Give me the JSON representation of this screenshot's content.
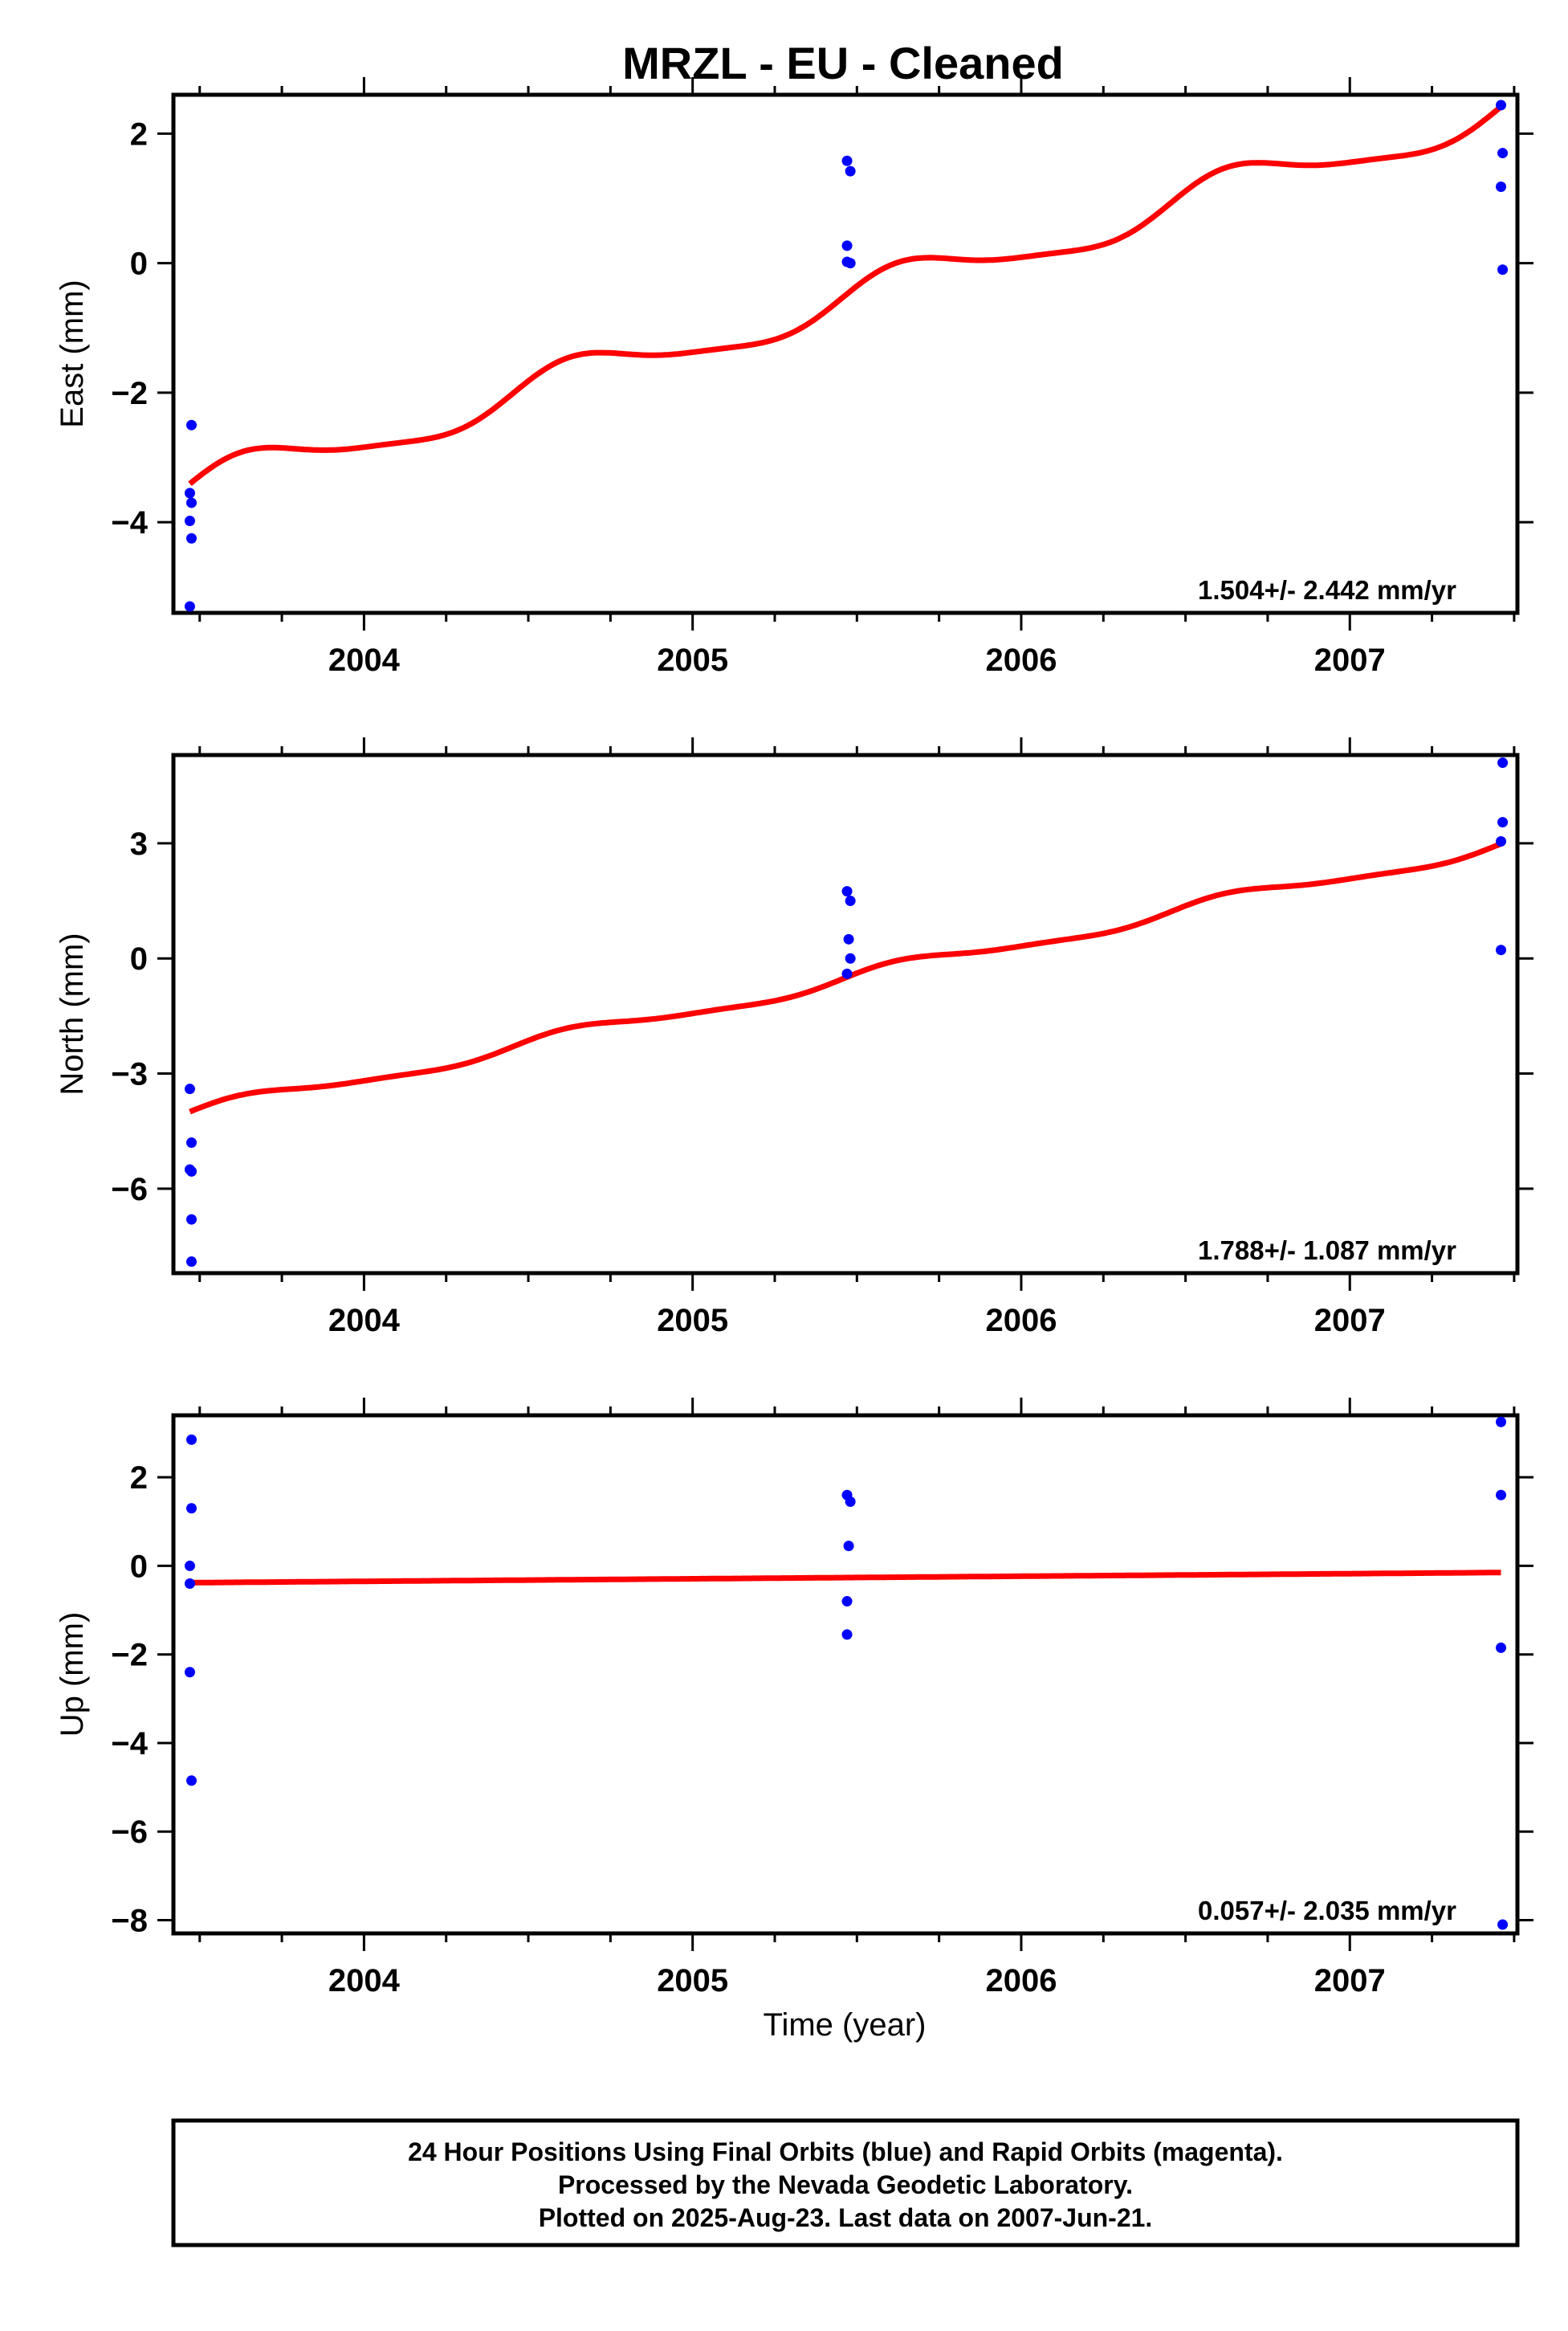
{
  "chart_title": "MRZL  - EU - Cleaned",
  "colors": {
    "final_orbits": "#0000ff",
    "rapid_orbits": "#ff00ff",
    "model": "#ff0000",
    "frame": "#000000"
  },
  "x_axis": {
    "label": "Time (year)",
    "range": [
      2003.42,
      2007.51
    ],
    "major_ticks": [
      2004,
      2005,
      2006,
      2007
    ],
    "major_tick_labels": [
      "2004",
      "2005",
      "2006",
      "2007"
    ]
  },
  "chart_data": [
    {
      "type": "scatter",
      "component": "East",
      "ylabel": "East (mm)",
      "ylim": [
        -5.4,
        2.6
      ],
      "yticks": [
        -4,
        -2,
        0,
        2
      ],
      "ytick_labels": [
        "−4",
        "−2",
        "0",
        "2"
      ],
      "rate_label": "1.504+/- 2.442 mm/yr",
      "series": [
        {
          "role": "final",
          "color": "#0000ff",
          "x": [
            2003.47,
            2003.475,
            2003.47,
            2003.475,
            2003.47,
            2003.475,
            2005.47,
            2005.48,
            2005.47,
            2005.47,
            2005.48,
            2007.46,
            2007.465,
            2007.46,
            2007.465
          ],
          "y": [
            -3.55,
            -3.7,
            -3.98,
            -4.25,
            -5.3,
            -2.5,
            1.58,
            1.42,
            0.27,
            0.02,
            0.0,
            2.44,
            1.7,
            1.18,
            -0.1
          ]
        }
      ],
      "model": {
        "trend_start": -3.5,
        "trend_end": 2.35,
        "annual_amp": 0.3,
        "semiannual_amp": 0.07,
        "t0": 2003.47,
        "t1": 2007.46
      }
    },
    {
      "type": "scatter",
      "component": "North",
      "ylabel": "North (mm)",
      "ylim": [
        -8.2,
        5.3
      ],
      "yticks": [
        -6,
        -3,
        0,
        3
      ],
      "ytick_labels": [
        "−6",
        "−3",
        "0",
        "3"
      ],
      "rate_label": "1.788+/- 1.087 mm/yr",
      "series": [
        {
          "role": "final",
          "color": "#0000ff",
          "x": [
            2003.47,
            2003.475,
            2003.47,
            2003.475,
            2003.475,
            2003.475,
            2005.47,
            2005.48,
            2005.475,
            2005.48,
            2005.47,
            2007.465,
            2007.465,
            2007.46,
            2007.46
          ],
          "y": [
            -3.4,
            -4.8,
            -5.5,
            -5.55,
            -6.8,
            -7.9,
            1.75,
            1.5,
            0.5,
            0.0,
            -0.4,
            5.1,
            3.55,
            3.05,
            0.22
          ]
        }
      ],
      "model": {
        "trend_start": -4.05,
        "trend_end": 2.95,
        "annual_amp": 0.18,
        "semiannual_amp": 0.05,
        "t0": 2003.47,
        "t1": 2007.46
      }
    },
    {
      "type": "scatter",
      "component": "Up",
      "ylabel": "Up (mm)",
      "ylim": [
        -8.3,
        3.4
      ],
      "yticks": [
        -8,
        -6,
        -4,
        -2,
        0,
        2
      ],
      "ytick_labels": [
        "−8",
        "−6",
        "−4",
        "−2",
        "0",
        "2"
      ],
      "rate_label": "0.057+/- 2.035 mm/yr",
      "series": [
        {
          "role": "final",
          "color": "#0000ff",
          "x": [
            2003.475,
            2003.475,
            2003.47,
            2003.47,
            2003.47,
            2003.475,
            2005.47,
            2005.48,
            2005.475,
            2005.47,
            2005.47,
            2007.46,
            2007.46,
            2007.46,
            2007.465
          ],
          "y": [
            2.85,
            1.3,
            0.0,
            -0.4,
            -2.4,
            -4.85,
            1.6,
            1.45,
            0.45,
            -0.8,
            -1.55,
            3.25,
            1.6,
            -1.85,
            -8.1
          ]
        }
      ],
      "model": {
        "trend_start": -0.38,
        "trend_end": -0.15,
        "annual_amp": 0.0,
        "semiannual_amp": 0.0,
        "t0": 2003.47,
        "t1": 2007.46
      }
    }
  ],
  "footer": {
    "line1": "24 Hour Positions Using Final Orbits (blue) and Rapid Orbits (magenta).",
    "line2": "Processed by the Nevada Geodetic Laboratory.",
    "line3": "Plotted on 2025-Aug-23. Last data on 2007-Jun-21."
  }
}
